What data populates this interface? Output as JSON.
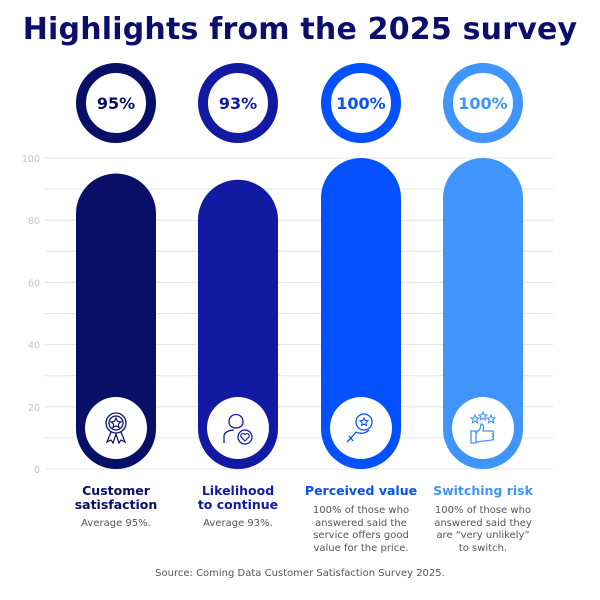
{
  "title": "Highlights from the 2025 survey",
  "source": "Source: Coming Data Customer Satisfaction Survey 2025.",
  "chart_data": {
    "type": "bar",
    "title": "Highlights from the 2025 survey",
    "categories": [
      "Customer satisfaction",
      "Likelihood to continue",
      "Perceived value",
      "Switching risk"
    ],
    "values": [
      95,
      93,
      100,
      100
    ],
    "value_labels": [
      "95%",
      "93%",
      "100%",
      "100%"
    ],
    "colors": [
      "#070f66",
      "#1219a3",
      "#0251fd",
      "#3f95fb"
    ],
    "icons": [
      "award-ribbon-icon",
      "person-heart-icon",
      "hand-star-bulb-icon",
      "thumbs-up-stars-icon"
    ],
    "labels_line1": [
      "Customer",
      "Likelihood",
      "Perceived value",
      "Switching risk"
    ],
    "labels_line2": [
      "satisfaction",
      "to continue",
      "",
      ""
    ],
    "descriptions": [
      [
        "Average 95%."
      ],
      [
        "Average 93%."
      ],
      [
        "100% of those who",
        "answered said the",
        "service offers good",
        "value for the price."
      ],
      [
        "100% of those who",
        "answered said they",
        "are “very unlikely”",
        "to switch."
      ]
    ],
    "yticks": [
      0,
      20,
      40,
      60,
      80,
      100
    ],
    "ytick_labels": [
      "0",
      "20",
      "40",
      "60",
      "80",
      "100"
    ],
    "ylim": [
      0,
      100
    ],
    "grid": true,
    "xlabel": "",
    "ylabel": ""
  }
}
